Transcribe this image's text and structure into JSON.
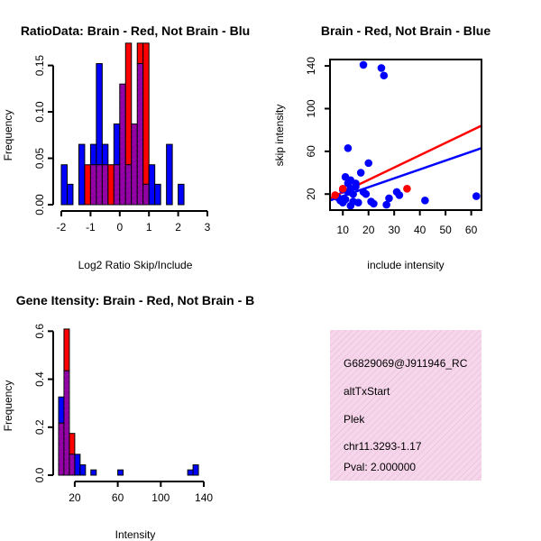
{
  "colors": {
    "red": "#ff0000",
    "blue": "#0000ff",
    "overlap": "#9900aa",
    "hatch": "#6a1088",
    "info_bg": "#f5d6ea",
    "pval": "#8b0000"
  },
  "chart_data": [
    {
      "type": "histogram-overlay",
      "title": "RatioData: Brain - Red, Not Brain - Blu",
      "xlabel": "Log2 Ratio Skip/Include",
      "ylabel": "Frequency",
      "xlim": [
        -2,
        3
      ],
      "ylim": [
        0,
        0.17
      ],
      "xticks": [
        "-2",
        "-1",
        "0",
        "1",
        "2",
        "3"
      ],
      "yticks": [
        "0.00",
        "0.05",
        "0.10",
        "0.15"
      ],
      "yticks_values": [
        0,
        0.05,
        0.1,
        0.15
      ],
      "bin_edges": [
        -2.0,
        -1.8,
        -1.6,
        -1.4,
        -1.2,
        -1.0,
        -0.8,
        -0.6,
        -0.4,
        -0.2,
        0.0,
        0.2,
        0.4,
        0.6,
        0.8,
        1.0,
        1.2,
        1.4,
        1.6,
        1.8,
        2.0,
        2.2,
        2.4,
        2.6,
        2.8,
        3.0
      ],
      "series": [
        {
          "name": "Brain",
          "color": "red",
          "values": [
            0,
            0,
            0,
            0,
            0.043,
            0.043,
            0.043,
            0.043,
            0.043,
            0.043,
            0.13,
            0.174,
            0.087,
            0.174,
            0.174,
            0,
            0,
            0,
            0,
            0,
            0,
            0,
            0,
            0,
            0
          ]
        },
        {
          "name": "Not Brain",
          "color": "blue",
          "values": [
            0.043,
            0.022,
            0,
            0.065,
            0,
            0.065,
            0.152,
            0.065,
            0,
            0.087,
            0.13,
            0.043,
            0.087,
            0.152,
            0.022,
            0.043,
            0.022,
            0,
            0.065,
            0,
            0.022,
            0,
            0,
            0,
            0
          ]
        }
      ]
    },
    {
      "type": "scatter",
      "title": "Brain - Red, Not Brain - Blue",
      "xlabel": "include intensity",
      "ylabel": "skip intensity",
      "xlim": [
        5,
        64
      ],
      "ylim": [
        5,
        146
      ],
      "xticks": [
        "10",
        "20",
        "30",
        "40",
        "50",
        "60"
      ],
      "xticks_values": [
        10,
        20,
        30,
        40,
        50,
        60
      ],
      "yticks": [
        "20",
        "60",
        "100",
        "140"
      ],
      "yticks_values": [
        20,
        60,
        100,
        140
      ],
      "series": [
        {
          "name": "Not Brain",
          "color": "blue",
          "points": [
            [
              8,
              17
            ],
            [
              9,
              14
            ],
            [
              10,
              12
            ],
            [
              10,
              24
            ],
            [
              11,
              36
            ],
            [
              11,
              15
            ],
            [
              12,
              63
            ],
            [
              12,
              22
            ],
            [
              12,
              30
            ],
            [
              13,
              9
            ],
            [
              13,
              33
            ],
            [
              13,
              25
            ],
            [
              14,
              20
            ],
            [
              14,
              13
            ],
            [
              15,
              27
            ],
            [
              15,
              30
            ],
            [
              16,
              12
            ],
            [
              17,
              40
            ],
            [
              18,
              141
            ],
            [
              18,
              22
            ],
            [
              19,
              20
            ],
            [
              20,
              49
            ],
            [
              21,
              13
            ],
            [
              22,
              11
            ],
            [
              25,
              138
            ],
            [
              26,
              131
            ],
            [
              27,
              10
            ],
            [
              28,
              16
            ],
            [
              31,
              22
            ],
            [
              32,
              19
            ],
            [
              42,
              14
            ],
            [
              62,
              18
            ]
          ]
        },
        {
          "name": "Brain",
          "color": "red",
          "points": [
            [
              7,
              19
            ],
            [
              10,
              25
            ],
            [
              35,
              25
            ]
          ]
        }
      ],
      "fit_lines": [
        {
          "name": "Brain",
          "color": "red",
          "x": [
            5,
            64
          ],
          "y": [
            16,
            84
          ]
        },
        {
          "name": "Not Brain",
          "color": "blue",
          "x": [
            5,
            64
          ],
          "y": [
            14,
            63
          ]
        }
      ]
    },
    {
      "type": "histogram-overlay",
      "title": "Gene Itensity: Brain - Red, Not Brain - B",
      "xlabel": "Intensity",
      "ylabel": "Frequency",
      "xlim": [
        5,
        145
      ],
      "ylim": [
        0,
        0.62
      ],
      "xticks": [
        "20",
        "60",
        "100",
        "140"
      ],
      "xticks_values": [
        20,
        60,
        100,
        140
      ],
      "yticks": [
        "0.0",
        "0.2",
        "0.4",
        "0.6"
      ],
      "yticks_values": [
        0,
        0.2,
        0.4,
        0.6
      ],
      "bin_edges": [
        5,
        10,
        15,
        20,
        25,
        30,
        35,
        40,
        45,
        50,
        55,
        60,
        65,
        70,
        75,
        80,
        85,
        90,
        95,
        100,
        105,
        110,
        115,
        120,
        125,
        130,
        135,
        140,
        145
      ],
      "series": [
        {
          "name": "Brain",
          "color": "red",
          "values": [
            0.217,
            0.609,
            0.174,
            0,
            0,
            0,
            0,
            0,
            0,
            0,
            0,
            0,
            0,
            0,
            0,
            0,
            0,
            0,
            0,
            0,
            0,
            0,
            0,
            0,
            0,
            0,
            0,
            0
          ]
        },
        {
          "name": "Not Brain",
          "color": "blue",
          "values": [
            0.326,
            0.435,
            0.087,
            0.087,
            0.043,
            0,
            0.022,
            0,
            0,
            0,
            0,
            0.022,
            0,
            0,
            0,
            0,
            0,
            0,
            0,
            0,
            0,
            0,
            0,
            0,
            0.022,
            0.043,
            0,
            0
          ]
        }
      ]
    }
  ],
  "info_panel": {
    "id": "G6829069@J911946_RC",
    "event": "altTxStart",
    "gene": "Plek",
    "locus": "chr11.3293-1.17",
    "pval": "Pval: 2.000000"
  }
}
